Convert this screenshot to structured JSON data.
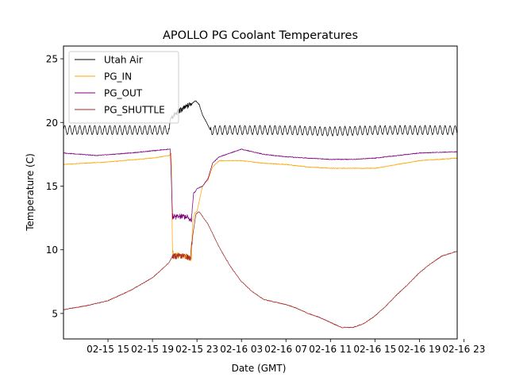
{
  "chart_data": {
    "type": "line",
    "title": "APOLLO PG Coolant Temperatures",
    "xlabel": "Date (GMT)",
    "ylabel": "Temperature (C)",
    "x_unit": "hours since 02-15 11:00 GMT",
    "xlim": [
      0,
      35.4
    ],
    "ylim": [
      3,
      26
    ],
    "legend_position": "top-left",
    "x_ticks": [
      {
        "x": 4,
        "label": "02-15 15"
      },
      {
        "x": 8,
        "label": "02-15 19"
      },
      {
        "x": 12,
        "label": "02-15 23"
      },
      {
        "x": 16,
        "label": "02-16 03"
      },
      {
        "x": 20,
        "label": "02-16 07"
      },
      {
        "x": 24,
        "label": "02-16 11"
      },
      {
        "x": 28,
        "label": "02-16 15"
      },
      {
        "x": 32,
        "label": "02-16 19"
      },
      {
        "x": 36,
        "label": "02-16 23"
      }
    ],
    "y_ticks": [
      5,
      10,
      15,
      20,
      25
    ],
    "series": [
      {
        "name": "Utah Air",
        "color": "#000000",
        "oscillation": {
          "amplitude": 0.35,
          "period_hours": 0.45,
          "until_x": 9.5,
          "from_x": 13.2
        },
        "x": [
          0,
          9.5,
          9.6,
          10.0,
          10.4,
          11.0,
          11.5,
          11.9,
          12.2,
          12.5,
          12.8,
          13.2,
          16,
          20,
          24,
          28,
          32,
          35.4
        ],
        "y": [
          19.4,
          19.4,
          20.3,
          20.6,
          20.9,
          21.2,
          21.5,
          21.7,
          21.4,
          20.6,
          20.1,
          19.4,
          19.4,
          19.4,
          19.3,
          19.4,
          19.4,
          19.4
        ]
      },
      {
        "name": "PG_IN",
        "color": "#ffa500",
        "x": [
          0,
          4,
          8,
          9.5,
          9.7,
          9.8,
          9.85,
          9.9,
          10.2,
          10.6,
          11.0,
          11.4,
          11.5,
          11.6,
          11.8,
          12.0,
          12.5,
          13.0,
          13.4,
          14,
          16,
          18,
          20,
          22,
          24,
          26,
          28,
          30,
          32,
          35.4
        ],
        "y": [
          16.7,
          16.9,
          17.2,
          17.4,
          17.6,
          9.5,
          10.0,
          9.5,
          9.6,
          9.5,
          9.5,
          9.3,
          9.3,
          12.0,
          12.9,
          13.0,
          15.0,
          15.5,
          16.5,
          17.0,
          17.0,
          16.8,
          16.7,
          16.5,
          16.4,
          16.4,
          16.4,
          16.7,
          17.0,
          17.2
        ]
      },
      {
        "name": "PG_OUT",
        "color": "#800080",
        "x": [
          0,
          3,
          6,
          9.5,
          9.6,
          9.7,
          9.8,
          10.2,
          10.6,
          11.0,
          11.4,
          11.5,
          11.7,
          11.8,
          12.0,
          12.5,
          13.0,
          13.4,
          14,
          15,
          16,
          18,
          20,
          22,
          24,
          26,
          28,
          30,
          32,
          35.4
        ],
        "y": [
          17.6,
          17.4,
          17.6,
          17.9,
          17.9,
          15.5,
          12.6,
          12.6,
          12.6,
          12.6,
          12.4,
          12.3,
          14.5,
          14.5,
          14.8,
          15.0,
          15.6,
          16.8,
          17.3,
          17.6,
          17.9,
          17.5,
          17.3,
          17.2,
          17.1,
          17.1,
          17.2,
          17.4,
          17.6,
          17.7
        ]
      },
      {
        "name": "PG_SHUTTLE",
        "color": "#a52a2a",
        "x": [
          0,
          2,
          4,
          6,
          8,
          9.5,
          9.8,
          10.2,
          10.6,
          11.0,
          11.4,
          11.6,
          11.9,
          12.2,
          13.0,
          14,
          15,
          16,
          17,
          18,
          19,
          20,
          21,
          22,
          23,
          24,
          25,
          26,
          27,
          28,
          29,
          30,
          31,
          32,
          33,
          34,
          35.4
        ],
        "y": [
          5.3,
          5.6,
          6.0,
          6.8,
          7.8,
          9.0,
          9.5,
          9.5,
          9.5,
          9.5,
          9.3,
          11.0,
          12.8,
          13.0,
          12.0,
          10.2,
          8.7,
          7.5,
          6.7,
          6.1,
          5.9,
          5.7,
          5.4,
          5.0,
          4.7,
          4.3,
          3.9,
          3.9,
          4.2,
          4.8,
          5.6,
          6.5,
          7.3,
          8.2,
          8.9,
          9.5,
          9.9
        ]
      }
    ]
  }
}
